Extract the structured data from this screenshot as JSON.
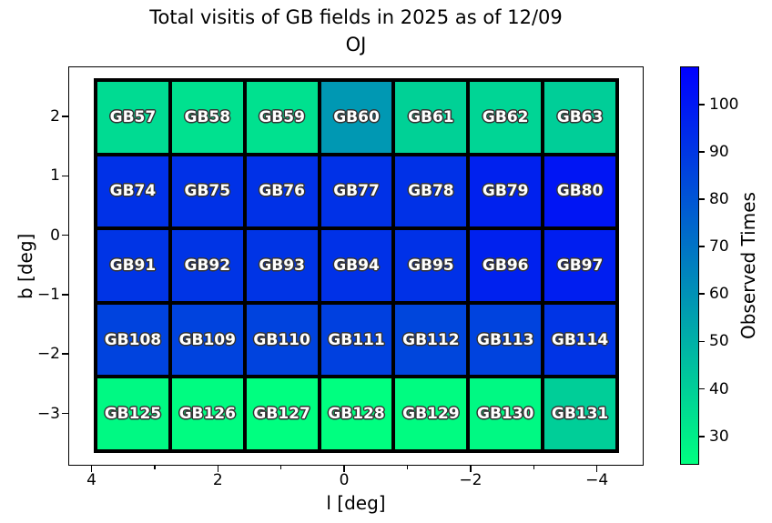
{
  "chart_data": {
    "type": "heatmap",
    "title_line1": "Total visitis of GB fields in 2025 as of 12/09",
    "title_line2": "OJ",
    "xlabel": "l [deg]",
    "ylabel": "b [deg]",
    "colormap": "winter_r",
    "grid": {
      "columns": 7,
      "rows": 5,
      "cell_edge_color": "#000000"
    },
    "x_axis": {
      "reversed": true,
      "major_ticks": [
        {
          "v": 4,
          "label": "4"
        },
        {
          "v": 2,
          "label": "2"
        },
        {
          "v": 0,
          "label": "0"
        },
        {
          "v": -2,
          "label": "−2"
        },
        {
          "v": -4,
          "label": "−4"
        }
      ],
      "minor_ticks": [
        3,
        1,
        -1,
        -3
      ]
    },
    "y_axis": {
      "major_ticks": [
        {
          "v": 2,
          "label": "2"
        },
        {
          "v": 1,
          "label": "1"
        },
        {
          "v": 0,
          "label": "0"
        },
        {
          "v": -1,
          "label": "−1"
        },
        {
          "v": -2,
          "label": "−2"
        },
        {
          "v": -3,
          "label": "−3"
        }
      ]
    },
    "colorbar": {
      "label": "Observed Times",
      "vmin": 24,
      "vmax": 108,
      "color_low": "#00FF80",
      "color_high": "#0000FF",
      "ticks": [
        {
          "v": 30,
          "label": "30"
        },
        {
          "v": 40,
          "label": "40"
        },
        {
          "v": 50,
          "label": "50"
        },
        {
          "v": 60,
          "label": "60"
        },
        {
          "v": 70,
          "label": "70"
        },
        {
          "v": 80,
          "label": "80"
        },
        {
          "v": 90,
          "label": "90"
        },
        {
          "v": 100,
          "label": "100"
        }
      ]
    },
    "rows": [
      {
        "fields": [
          "GB57",
          "GB58",
          "GB59",
          "GB60",
          "GB61",
          "GB62",
          "GB63"
        ],
        "values": [
          36,
          34,
          34,
          58,
          39,
          38,
          40
        ]
      },
      {
        "fields": [
          "GB74",
          "GB75",
          "GB76",
          "GB77",
          "GB78",
          "GB79",
          "GB80"
        ],
        "values": [
          92,
          92,
          92,
          92,
          92,
          97,
          101
        ]
      },
      {
        "fields": [
          "GB91",
          "GB92",
          "GB93",
          "GB94",
          "GB95",
          "GB96",
          "GB97"
        ],
        "values": [
          91,
          91,
          91,
          92,
          92,
          97,
          98
        ]
      },
      {
        "fields": [
          "GB108",
          "GB109",
          "GB110",
          "GB111",
          "GB112",
          "GB113",
          "GB114"
        ],
        "values": [
          86,
          86,
          86,
          87,
          85,
          86,
          91
        ]
      },
      {
        "fields": [
          "GB125",
          "GB126",
          "GB127",
          "GB128",
          "GB129",
          "GB130",
          "GB131"
        ],
        "values": [
          26,
          25,
          24,
          24,
          25,
          26,
          40
        ]
      }
    ]
  }
}
